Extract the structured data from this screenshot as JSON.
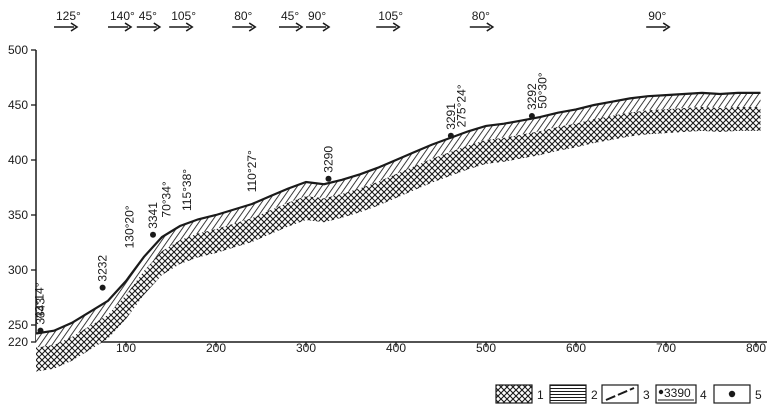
{
  "chart_data": {
    "type": "line",
    "x_ticks": [
      "100",
      "200",
      "300",
      "400",
      "500",
      "600",
      "700",
      "800"
    ],
    "y_ticks": [
      "220",
      "250",
      "300",
      "350",
      "400",
      "450",
      "500"
    ],
    "xlim": [
      0,
      805
    ],
    "ylim": [
      220,
      500
    ],
    "surface": {
      "x": [
        0,
        20,
        40,
        60,
        80,
        100,
        120,
        140,
        160,
        180,
        200,
        220,
        240,
        260,
        280,
        300,
        320,
        340,
        360,
        380,
        400,
        420,
        440,
        460,
        480,
        500,
        520,
        540,
        560,
        580,
        600,
        620,
        640,
        660,
        680,
        700,
        720,
        740,
        760,
        780,
        805
      ],
      "y": [
        235,
        240,
        252,
        262,
        272,
        290,
        312,
        330,
        340,
        346,
        350,
        355,
        360,
        367,
        374,
        380,
        378,
        382,
        387,
        393,
        400,
        407,
        414,
        420,
        426,
        431,
        433,
        436,
        439,
        443,
        446,
        450,
        453,
        456,
        458,
        459,
        460,
        461,
        460,
        461,
        461
      ]
    },
    "bearings": [
      {
        "label": "125°",
        "x": 20
      },
      {
        "label": "140°",
        "x": 80
      },
      {
        "label": "45°",
        "x": 112
      },
      {
        "label": "105°",
        "x": 148
      },
      {
        "label": "80°",
        "x": 218
      },
      {
        "label": "45°",
        "x": 270
      },
      {
        "label": "90°",
        "x": 300
      },
      {
        "label": "105°",
        "x": 378
      },
      {
        "label": "80°",
        "x": 482
      },
      {
        "label": "90°",
        "x": 678
      }
    ],
    "samples": [
      {
        "label": "3343",
        "x": 5,
        "y": 240
      },
      {
        "label": "3232",
        "x": 74,
        "y": 284
      },
      {
        "label": "3341",
        "x": 130,
        "y": 332
      },
      {
        "label": "3290",
        "x": 325,
        "y": 383
      },
      {
        "label": "3291",
        "x": 461,
        "y": 422
      },
      {
        "label": "3292",
        "x": 551,
        "y": 440
      }
    ],
    "dips": [
      {
        "label": "43°14°",
        "x": 4,
        "y": 252
      },
      {
        "label": "130°20°",
        "x": 104,
        "y": 316
      },
      {
        "label": "70°34°",
        "x": 145,
        "y": 344
      },
      {
        "label": "115°38°",
        "x": 168,
        "y": 350
      },
      {
        "label": "110°27°",
        "x": 240,
        "y": 367
      },
      {
        "label": "275°24°",
        "x": 473,
        "y": 426
      },
      {
        "label": "50°30°",
        "x": 563,
        "y": 443
      }
    ],
    "legend": [
      "1",
      "2",
      "3",
      "4",
      "5"
    ],
    "legend_swatch_4": "3390"
  }
}
